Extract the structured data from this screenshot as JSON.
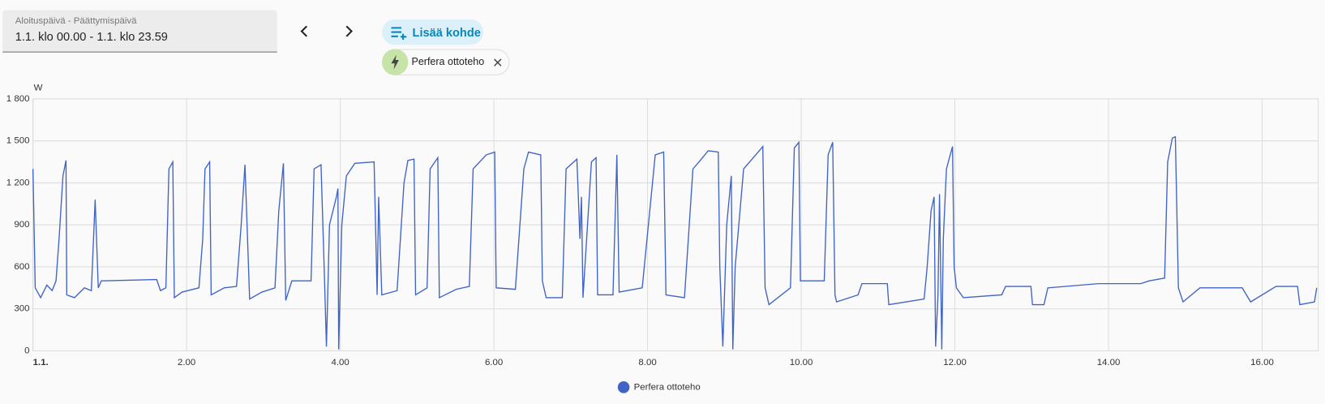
{
  "controls": {
    "date_label": "Aloituspäivä - Päättymispäivä",
    "date_value": "1.1. klo 00.00 - 1.1. klo 23.59",
    "add_button": "Lisää kohde",
    "chip": "Perfera ottoteho"
  },
  "chart_data": {
    "type": "line",
    "y_label": "W",
    "x": [
      0,
      0.03,
      0.1,
      0.18,
      0.25,
      0.3,
      0.34,
      0.39,
      0.43,
      0.44,
      0.54,
      0.67,
      0.76,
      0.81,
      0.85,
      0.89,
      1.61,
      1.66,
      1.73,
      1.77,
      1.82,
      1.84,
      1.94,
      2.16,
      2.21,
      2.24,
      2.3,
      2.32,
      2.49,
      2.65,
      2.71,
      2.76,
      2.82,
      2.98,
      3.15,
      3.2,
      3.26,
      3.29,
      3.37,
      3.62,
      3.66,
      3.75,
      3.79,
      3.82,
      3.86,
      3.95,
      3.97,
      3.98,
      4.02,
      4.08,
      4.19,
      4.44,
      4.48,
      4.5,
      4.54,
      4.74,
      4.83,
      4.88,
      4.96,
      4.98,
      5.13,
      5.17,
      5.27,
      5.29,
      5.51,
      5.68,
      5.73,
      5.9,
      6.01,
      6.03,
      6.28,
      6.39,
      6.45,
      6.61,
      6.63,
      6.68,
      6.89,
      6.94,
      7.08,
      7.12,
      7.14,
      7.16,
      7.27,
      7.33,
      7.35,
      7.55,
      7.6,
      7.63,
      7.93,
      8.1,
      8.21,
      8.24,
      8.48,
      8.59,
      8.67,
      8.79,
      8.92,
      8.94,
      8.98,
      9.03,
      9.09,
      9.11,
      9.14,
      9.25,
      9.47,
      9.5,
      9.53,
      9.58,
      9.86,
      9.91,
      9.97,
      9.99,
      10.3,
      10.35,
      10.41,
      10.44,
      10.46,
      10.74,
      10.79,
      11.12,
      11.14,
      11.6,
      11.64,
      11.69,
      11.73,
      11.75,
      11.78,
      11.8,
      11.83,
      11.85,
      11.89,
      11.97,
      11.99,
      12.02,
      12.11,
      12.61,
      12.66,
      12.99,
      13.01,
      13.16,
      13.21,
      13.87,
      14.42,
      14.53,
      14.73,
      14.77,
      14.83,
      14.87,
      14.91,
      14.97,
      15.19,
      15.74,
      15.85,
      16.18,
      16.46,
      16.49,
      16.68,
      16.71
    ],
    "series": [
      {
        "name": "Perfera ottoteho",
        "color": "#4063c6",
        "values": [
          1300,
          450,
          380,
          470,
          430,
          500,
          800,
          1250,
          1360,
          400,
          380,
          450,
          430,
          1080,
          450,
          500,
          510,
          430,
          450,
          1300,
          1350,
          380,
          420,
          450,
          800,
          1300,
          1350,
          400,
          450,
          460,
          900,
          1330,
          370,
          420,
          450,
          1000,
          1340,
          360,
          500,
          500,
          1300,
          1330,
          600,
          30,
          900,
          1100,
          1160,
          10,
          900,
          1250,
          1340,
          1350,
          400,
          1100,
          400,
          430,
          1200,
          1360,
          1370,
          400,
          450,
          1300,
          1380,
          380,
          440,
          460,
          1300,
          1400,
          1420,
          450,
          440,
          1300,
          1420,
          1400,
          500,
          380,
          380,
          1300,
          1370,
          800,
          1100,
          380,
          1350,
          1380,
          400,
          400,
          1400,
          420,
          450,
          1400,
          1420,
          400,
          380,
          1300,
          1350,
          1430,
          1420,
          600,
          30,
          900,
          1250,
          10,
          600,
          1300,
          1440,
          1460,
          450,
          330,
          450,
          1450,
          1490,
          500,
          500,
          1400,
          1490,
          400,
          350,
          400,
          480,
          480,
          330,
          370,
          600,
          1000,
          1100,
          30,
          400,
          1120,
          10,
          800,
          1300,
          1460,
          600,
          450,
          380,
          400,
          460,
          460,
          330,
          330,
          450,
          480,
          480,
          500,
          520,
          1350,
          1520,
          1530,
          450,
          350,
          450,
          450,
          350,
          460,
          460,
          330,
          350,
          450
        ]
      }
    ],
    "xlim": [
      0,
      16.73
    ],
    "xticks": [
      {
        "value": 0,
        "label": "1.1."
      },
      {
        "value": 2,
        "label": "2.00"
      },
      {
        "value": 4,
        "label": "4.00"
      },
      {
        "value": 6,
        "label": "6.00"
      },
      {
        "value": 8,
        "label": "8.00"
      },
      {
        "value": 10,
        "label": "10.00"
      },
      {
        "value": 12,
        "label": "12.00"
      },
      {
        "value": 14,
        "label": "14.00"
      },
      {
        "value": 16,
        "label": "16.00"
      }
    ],
    "ylim": [
      0,
      1800
    ],
    "yticks": [
      0,
      300,
      600,
      900,
      {
        "value": 1200,
        "label": "1 200"
      },
      {
        "value": 1500,
        "label": "1 500"
      },
      {
        "value": 1800,
        "label": "1 800"
      }
    ],
    "grid": true
  }
}
